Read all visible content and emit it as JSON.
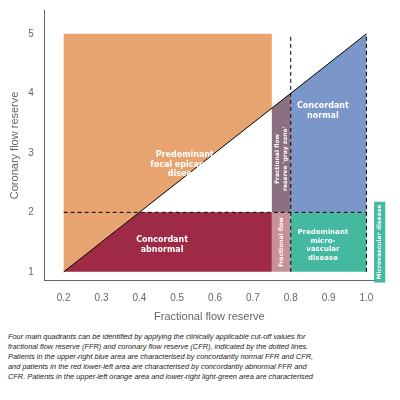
{
  "chart_data": {
    "type": "area",
    "xlabel": "Fractional flow reserve",
    "ylabel": "Coronary flow reserve",
    "xlim": [
      0.15,
      1.02
    ],
    "ylim": [
      0.85,
      5.4
    ],
    "xticks": [
      0.2,
      0.3,
      0.4,
      0.5,
      0.6,
      0.7,
      0.8,
      0.9,
      {
        "value": 1.0,
        "label": "1.0"
      }
    ],
    "yticks": [
      1,
      2,
      3,
      4,
      5
    ],
    "grid": false,
    "series": [
      {
        "type": "area",
        "color": "#e8a470",
        "x": [
          0.2,
          0.75,
          0.75,
          0.2
        ],
        "values": [
          1.0,
          3.75,
          5.0,
          5.0
        ]
      },
      {
        "type": "area",
        "color": "#7b96c8",
        "x": [
          0.8,
          1.0,
          1.0,
          0.8
        ],
        "values": [
          4.0,
          5.0,
          2.0,
          2.0
        ]
      },
      {
        "type": "area",
        "color": "#9e2a45",
        "x": [
          0.2,
          0.75,
          0.75,
          0.4
        ],
        "values": [
          1.0,
          1.0,
          2.0,
          2.0
        ]
      },
      {
        "type": "area",
        "color": "#45b8a0",
        "x": [
          0.8,
          1.0,
          1.0,
          0.8
        ],
        "values": [
          2.0,
          2.0,
          1.0,
          1.0
        ]
      },
      {
        "type": "area",
        "color": "#8a7080",
        "x": [
          0.75,
          0.75,
          0.8,
          0.8
        ],
        "values": [
          2.0,
          3.75,
          4.0,
          2.0
        ]
      },
      {
        "type": "area",
        "color": "#c8909a",
        "x": [
          0.75,
          0.75,
          0.8,
          0.8
        ],
        "values": [
          1.0,
          2.0,
          2.0,
          1.0
        ]
      },
      {
        "type": "line",
        "color": "#000000",
        "line_style": "solid",
        "x": [
          0.2,
          1.0
        ],
        "values": [
          1.0,
          5.0
        ]
      },
      {
        "type": "line",
        "color": "#000000",
        "line_style": "dashed",
        "x": [
          0.8,
          0.8
        ],
        "values": [
          1.0,
          5.0
        ]
      },
      {
        "type": "line",
        "color": "#000000",
        "line_style": "dashed",
        "x": [
          0.2,
          1.0
        ],
        "values": [
          2.0,
          2.0
        ]
      },
      {
        "type": "line",
        "color": "#000000",
        "line_style": "dashed",
        "x": [
          1.0,
          1.0
        ],
        "values": [
          1.0,
          5.0
        ]
      }
    ],
    "annotations": [
      {
        "text": "Concordant\nnormal",
        "x": 0.885,
        "y": 3.7,
        "color": "#ffffff"
      },
      {
        "text": "Predominant\nfocal epicardial\ndisease",
        "x": 0.52,
        "y": 2.8,
        "color": "#ffffff"
      },
      {
        "text": "Concordant\nabnormal",
        "x": 0.46,
        "y": 1.45,
        "color": "#ffffff"
      },
      {
        "text": "Predominant\nmicro-\nvascular\ndisease",
        "x": 0.885,
        "y": 1.45,
        "color": "#ffffff"
      },
      {
        "text": "Fractional flow\nreserve 'gray zone'",
        "x": 0.7755,
        "y": 2.9,
        "color": "#ffffff",
        "orientation": "vertical"
      },
      {
        "text": "Fractional flow",
        "x": 0.7755,
        "y": 1.5,
        "color": "#ffffff",
        "orientation": "vertical"
      },
      {
        "text": "Microvascular disease",
        "x": 1.035,
        "y": 1.5,
        "color": "#ffffff",
        "orientation": "vertical",
        "background": "#45b8a0"
      }
    ],
    "caption": "Four main quadrants can be identified by applying the clinically applicable cut-off values for\nfractional flow reserve (FFR) and coronary flow reserve (CFR), indicated by the dotted lines.\nPatients in the upper-right blue area are characterised by concordantly normal FFR and CFR,\nand patients in the red lower-left area are characterised by concordantly abnormal FFR and\nCFR. Patients in the upper-left orange area and lower-right light-green area are characterised"
  }
}
